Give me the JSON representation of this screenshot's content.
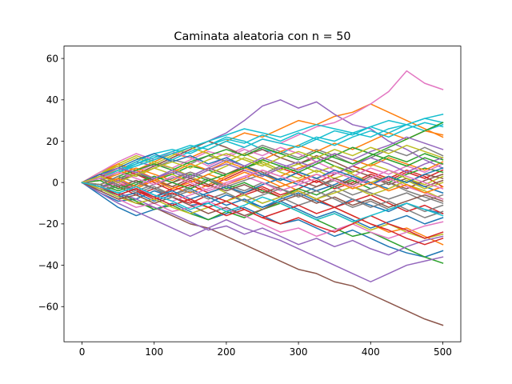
{
  "chart_data": {
    "type": "line",
    "title": "Caminata aleatoria con n = 50",
    "xlabel": "",
    "ylabel": "",
    "xlim": [
      -25,
      525
    ],
    "ylim": [
      -77,
      66
    ],
    "x_ticks": [
      0,
      100,
      200,
      300,
      400,
      500
    ],
    "y_ticks": [
      60,
      40,
      20,
      0,
      -20,
      -40,
      -60
    ],
    "x_tick_labels": [
      "0",
      "100",
      "200",
      "300",
      "400",
      "500"
    ],
    "y_tick_labels": [
      "60",
      "40",
      "20",
      "0",
      "−20",
      "−40",
      "−60"
    ],
    "grid": false,
    "legend": "none",
    "x": [
      0,
      25,
      50,
      75,
      100,
      125,
      150,
      175,
      200,
      225,
      250,
      275,
      300,
      325,
      350,
      375,
      400,
      425,
      450,
      475,
      500
    ],
    "palette": [
      "#1f77b4",
      "#ff7f0e",
      "#2ca02c",
      "#d62728",
      "#9467bd",
      "#8c564b",
      "#e377c2",
      "#7f7f7f",
      "#bcbd22",
      "#17becf"
    ],
    "series": [
      {
        "values": [
          0,
          -5,
          -9,
          -8,
          -4,
          -7,
          -11,
          -10,
          -6,
          -9,
          -12,
          -8,
          -5,
          -9,
          -12,
          -8,
          -11,
          -14,
          -10,
          -13,
          -15
        ]
      },
      {
        "values": [
          0,
          4,
          8,
          6,
          10,
          14,
          12,
          16,
          20,
          24,
          22,
          26,
          30,
          28,
          32,
          34,
          38,
          34,
          30,
          26,
          22
        ]
      },
      {
        "values": [
          0,
          -3,
          2,
          5,
          1,
          4,
          8,
          6,
          3,
          7,
          10,
          6,
          9,
          12,
          8,
          5,
          9,
          13,
          10,
          14,
          11
        ]
      },
      {
        "values": [
          0,
          2,
          -2,
          -6,
          -3,
          -7,
          -10,
          -6,
          -9,
          -5,
          -2,
          -6,
          -3,
          1,
          -3,
          0,
          4,
          1,
          5,
          2,
          6
        ]
      },
      {
        "values": [
          0,
          3,
          6,
          10,
          8,
          12,
          16,
          20,
          24,
          30,
          37,
          40,
          36,
          39,
          33,
          28,
          26,
          20,
          16,
          11,
          7
        ]
      },
      {
        "values": [
          0,
          -2,
          -6,
          -10,
          -12,
          -16,
          -20,
          -22,
          -26,
          -30,
          -34,
          -38,
          -42,
          -44,
          -48,
          -50,
          -54,
          -58,
          -62,
          -66,
          -69
        ]
      },
      {
        "values": [
          0,
          3,
          1,
          5,
          9,
          7,
          11,
          15,
          13,
          17,
          21,
          19,
          23,
          27,
          29,
          33,
          38,
          44,
          54,
          48,
          45
        ]
      },
      {
        "values": [
          0,
          -4,
          -2,
          1,
          -3,
          -6,
          -2,
          2,
          -1,
          -4,
          0,
          -3,
          -6,
          -2,
          1,
          -2,
          -5,
          -8,
          -5,
          -9,
          -6
        ]
      },
      {
        "values": [
          0,
          4,
          9,
          13,
          10,
          7,
          3,
          -1,
          -5,
          -9,
          -13,
          -10,
          -14,
          -18,
          -15,
          -19,
          -23,
          -20,
          -24,
          -27,
          -25
        ]
      },
      {
        "values": [
          0,
          2,
          6,
          10,
          14,
          16,
          14,
          18,
          22,
          20,
          16,
          14,
          18,
          22,
          20,
          24,
          22,
          26,
          28,
          31,
          29
        ]
      },
      {
        "values": [
          0,
          -6,
          -12,
          -16,
          -13,
          -10,
          -14,
          -18,
          -15,
          -12,
          -16,
          -20,
          -18,
          -22,
          -26,
          -23,
          -27,
          -31,
          -34,
          -36,
          -33
        ]
      },
      {
        "values": [
          0,
          5,
          9,
          6,
          2,
          -2,
          -5,
          -1,
          3,
          7,
          4,
          0,
          -4,
          -8,
          -12,
          -16,
          -20,
          -24,
          -22,
          -26,
          -30
        ]
      },
      {
        "values": [
          0,
          -2,
          -5,
          -9,
          -13,
          -11,
          -15,
          -18,
          -14,
          -17,
          -13,
          -10,
          -14,
          -18,
          -22,
          -26,
          -24,
          -28,
          -32,
          -36,
          -39
        ]
      },
      {
        "values": [
          0,
          3,
          0,
          -4,
          -7,
          -3,
          1,
          -2,
          2,
          6,
          3,
          7,
          4,
          0,
          4,
          8,
          5,
          2,
          6,
          3,
          -2
        ]
      },
      {
        "values": [
          0,
          -5,
          -10,
          -14,
          -18,
          -22,
          -26,
          -22,
          -18,
          -22,
          -25,
          -28,
          -32,
          -36,
          -40,
          -44,
          -48,
          -44,
          -40,
          -38,
          -36
        ]
      },
      {
        "values": [
          0,
          -3,
          1,
          4,
          8,
          12,
          16,
          20,
          17,
          13,
          16,
          12,
          9,
          13,
          10,
          6,
          3,
          -1,
          2,
          -2,
          1
        ]
      },
      {
        "values": [
          0,
          -4,
          -8,
          -12,
          -10,
          -14,
          -12,
          -9,
          -13,
          -16,
          -20,
          -24,
          -22,
          -26,
          -23,
          -20,
          -24,
          -27,
          -24,
          -21,
          -19
        ]
      },
      {
        "values": [
          0,
          1,
          5,
          3,
          7,
          11,
          9,
          13,
          10,
          14,
          18,
          15,
          12,
          16,
          13,
          9,
          12,
          16,
          13,
          17,
          13
        ]
      },
      {
        "values": [
          0,
          5,
          8,
          12,
          9,
          13,
          17,
          14,
          10,
          14,
          10,
          6,
          9,
          5,
          8,
          4,
          0,
          3,
          -1,
          -4,
          -8
        ]
      },
      {
        "values": [
          0,
          2,
          5,
          9,
          13,
          11,
          15,
          18,
          21,
          19,
          23,
          20,
          24,
          21,
          25,
          23,
          27,
          24,
          28,
          25,
          28
        ]
      },
      {
        "values": [
          0,
          -3,
          -7,
          -5,
          -9,
          -6,
          -3,
          -7,
          -11,
          -8,
          -12,
          -9,
          -13,
          -17,
          -14,
          -18,
          -22,
          -19,
          -16,
          -20,
          -17
        ]
      },
      {
        "values": [
          0,
          4,
          1,
          -3,
          1,
          5,
          9,
          6,
          10,
          7,
          11,
          15,
          18,
          15,
          19,
          16,
          20,
          24,
          21,
          25,
          23
        ]
      },
      {
        "values": [
          0,
          -1,
          -4,
          -1,
          3,
          0,
          4,
          1,
          -3,
          0,
          -4,
          -7,
          -3,
          -6,
          -2,
          1,
          -3,
          0,
          4,
          7,
          5
        ]
      },
      {
        "values": [
          0,
          3,
          7,
          4,
          0,
          -4,
          -1,
          -5,
          -2,
          -6,
          -3,
          -7,
          -4,
          -8,
          -12,
          -9,
          -6,
          -10,
          -14,
          -11,
          -15
        ]
      },
      {
        "values": [
          0,
          -2,
          -5,
          -8,
          -12,
          -15,
          -19,
          -23,
          -21,
          -25,
          -22,
          -26,
          -30,
          -27,
          -31,
          -28,
          -32,
          -35,
          -31,
          -28,
          -26
        ]
      },
      {
        "values": [
          0,
          2,
          -2,
          1,
          -3,
          0,
          3,
          7,
          4,
          8,
          5,
          1,
          5,
          2,
          -2,
          2,
          -1,
          3,
          0,
          4,
          2
        ]
      },
      {
        "values": [
          0,
          5,
          10,
          14,
          11,
          15,
          12,
          8,
          12,
          16,
          13,
          17,
          14,
          10,
          6,
          3,
          7,
          4,
          8,
          5,
          9
        ]
      },
      {
        "values": [
          0,
          -4,
          -1,
          -5,
          -2,
          -6,
          -3,
          1,
          -2,
          -6,
          -10,
          -7,
          -11,
          -8,
          -4,
          -8,
          -12,
          -9,
          -13,
          -17,
          -14
        ]
      },
      {
        "values": [
          0,
          3,
          6,
          3,
          7,
          4,
          0,
          4,
          8,
          12,
          9,
          5,
          2,
          6,
          2,
          5,
          9,
          6,
          2,
          -1,
          3
        ]
      },
      {
        "values": [
          0,
          2,
          6,
          9,
          12,
          15,
          18,
          16,
          20,
          17,
          21,
          19,
          17,
          21,
          18,
          22,
          25,
          22,
          26,
          29,
          27
        ]
      },
      {
        "values": [
          0,
          -3,
          -6,
          -3,
          -7,
          -4,
          -8,
          -5,
          -2,
          -5,
          -1,
          2,
          -1,
          -4,
          -1,
          3,
          0,
          -3,
          1,
          -2,
          -5
        ]
      },
      {
        "values": [
          0,
          1,
          4,
          7,
          4,
          1,
          5,
          2,
          -1,
          2,
          6,
          3,
          7,
          10,
          14,
          11,
          8,
          12,
          9,
          6,
          10
        ]
      },
      {
        "values": [
          0,
          -1,
          3,
          6,
          9,
          6,
          10,
          13,
          16,
          13,
          17,
          14,
          11,
          15,
          12,
          9,
          13,
          17,
          21,
          25,
          29
        ]
      },
      {
        "values": [
          0,
          4,
          0,
          -4,
          -8,
          -5,
          -9,
          -12,
          -16,
          -13,
          -17,
          -20,
          -17,
          -21,
          -24,
          -20,
          -16,
          -20,
          -23,
          -27,
          -24
        ]
      },
      {
        "values": [
          0,
          -2,
          1,
          -2,
          2,
          5,
          2,
          6,
          9,
          6,
          3,
          7,
          10,
          7,
          4,
          8,
          12,
          9,
          5,
          9,
          12
        ]
      },
      {
        "values": [
          0,
          3,
          0,
          4,
          1,
          -2,
          2,
          -1,
          -4,
          -1,
          -5,
          -2,
          1,
          -2,
          2,
          -1,
          3,
          0,
          -3,
          1,
          4
        ]
      },
      {
        "values": [
          0,
          -3,
          0,
          -3,
          -6,
          -9,
          -6,
          -3,
          0,
          3,
          0,
          -4,
          -1,
          2,
          5,
          2,
          -1,
          2,
          -2,
          -5,
          -8
        ]
      },
      {
        "values": [
          0,
          2,
          -1,
          -4,
          -1,
          2,
          5,
          2,
          -2,
          1,
          4,
          8,
          5,
          2,
          -2,
          -6,
          -3,
          0,
          -4,
          -7,
          -10
        ]
      },
      {
        "values": [
          0,
          -3,
          -7,
          -10,
          -8,
          -12,
          -15,
          -12,
          -9,
          -6,
          -10,
          -7,
          -4,
          -8,
          -5,
          -2,
          -6,
          -3,
          1,
          -3,
          0
        ]
      },
      {
        "values": [
          0,
          2,
          5,
          8,
          11,
          14,
          17,
          20,
          23,
          26,
          24,
          22,
          25,
          28,
          26,
          24,
          27,
          30,
          28,
          31,
          33
        ]
      },
      {
        "values": [
          0,
          4,
          7,
          11,
          14,
          10,
          13,
          9,
          12,
          8,
          4,
          1,
          5,
          2,
          6,
          3,
          -1,
          3,
          0,
          4,
          7
        ]
      },
      {
        "values": [
          0,
          -1,
          2,
          -2,
          1,
          -3,
          0,
          4,
          1,
          5,
          2,
          -2,
          1,
          4,
          1,
          -3,
          0,
          -4,
          -1,
          -5,
          -2
        ]
      },
      {
        "values": [
          0,
          1,
          -3,
          0,
          3,
          0,
          -3,
          1,
          4,
          7,
          11,
          8,
          5,
          9,
          13,
          17,
          14,
          11,
          8,
          12,
          9
        ]
      },
      {
        "values": [
          0,
          -2,
          -6,
          -3,
          -7,
          -11,
          -8,
          -12,
          -9,
          -13,
          -17,
          -14,
          -11,
          -15,
          -12,
          -16,
          -20,
          -23,
          -27,
          -30,
          -27
        ]
      },
      {
        "values": [
          0,
          3,
          7,
          5,
          2,
          6,
          3,
          7,
          11,
          8,
          12,
          9,
          6,
          10,
          14,
          11,
          15,
          18,
          22,
          19,
          16
        ]
      },
      {
        "values": [
          0,
          -4,
          -8,
          -6,
          -10,
          -7,
          -11,
          -15,
          -12,
          -16,
          -13,
          -9,
          -6,
          -10,
          -7,
          -11,
          -8,
          -12,
          -9,
          -6,
          -9
        ]
      },
      {
        "values": [
          0,
          2,
          5,
          2,
          -1,
          3,
          0,
          -4,
          -1,
          3,
          6,
          3,
          0,
          4,
          1,
          -2,
          2,
          6,
          3,
          0,
          -3
        ]
      },
      {
        "values": [
          0,
          -1,
          3,
          0,
          -3,
          -7,
          -4,
          -8,
          -5,
          -9,
          -6,
          -3,
          -7,
          -4,
          -8,
          -12,
          -9,
          -13,
          -10,
          -14,
          -11
        ]
      },
      {
        "values": [
          0,
          3,
          0,
          4,
          7,
          10,
          7,
          11,
          14,
          11,
          8,
          12,
          15,
          12,
          16,
          13,
          17,
          14,
          18,
          15,
          12
        ]
      },
      {
        "values": [
          0,
          -2,
          -5,
          -2,
          -6,
          -9,
          -13,
          -10,
          -14,
          -11,
          -7,
          -10,
          -14,
          -18,
          -15,
          -19,
          -16,
          -13,
          -10,
          -13,
          -16
        ]
      }
    ]
  }
}
